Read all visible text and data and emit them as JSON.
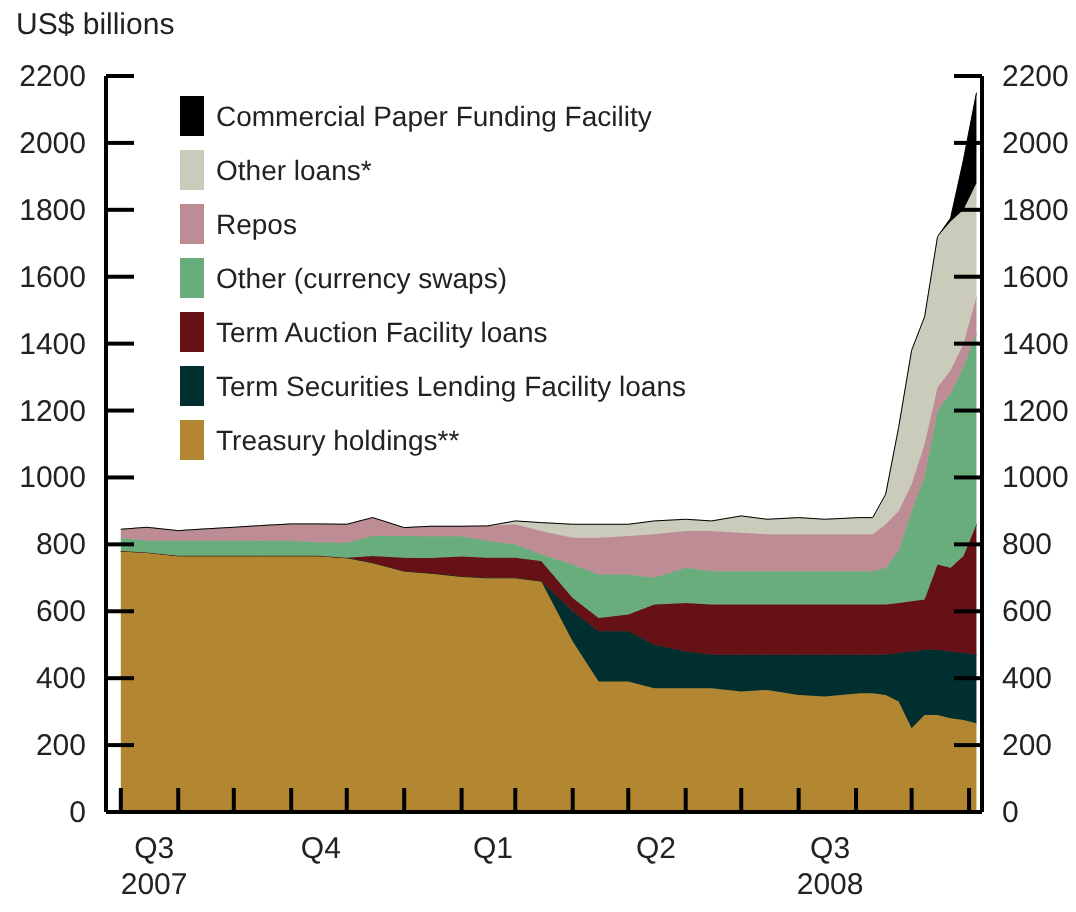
{
  "chart_data": {
    "type": "area",
    "stacked": true,
    "ylabel": "US$ billions",
    "x": [
      "2007-08-01",
      "2007-08-15",
      "2007-09-01",
      "2007-09-15",
      "2007-10-01",
      "2007-10-15",
      "2007-11-01",
      "2007-11-15",
      "2007-12-01",
      "2007-12-15",
      "2008-01-01",
      "2008-01-15",
      "2008-02-01",
      "2008-02-15",
      "2008-03-01",
      "2008-03-15",
      "2008-04-01",
      "2008-04-15",
      "2008-05-01",
      "2008-05-15",
      "2008-06-01",
      "2008-06-15",
      "2008-07-01",
      "2008-07-15",
      "2008-08-01",
      "2008-08-15",
      "2008-09-03",
      "2008-09-10",
      "2008-09-17",
      "2008-09-24",
      "2008-10-01",
      "2008-10-08",
      "2008-10-15",
      "2008-10-22",
      "2008-10-29",
      "2008-11-05"
    ],
    "series": [
      {
        "name": "Treasury holdings**",
        "color": "#b38631",
        "values": [
          780,
          776,
          766,
          766,
          766,
          766,
          766,
          766,
          760,
          745,
          720,
          714,
          704,
          700,
          700,
          690,
          510,
          390,
          390,
          370,
          370,
          370,
          360,
          365,
          350,
          345,
          355,
          355,
          350,
          330,
          250,
          290,
          290,
          280,
          275,
          265
        ]
      },
      {
        "name": "Term Securities Lending Facility loans",
        "color": "#012e2e",
        "values": [
          0,
          0,
          0,
          0,
          0,
          0,
          0,
          0,
          0,
          0,
          0,
          0,
          0,
          0,
          0,
          0,
          90,
          150,
          150,
          130,
          110,
          100,
          110,
          105,
          120,
          125,
          115,
          115,
          120,
          145,
          230,
          195,
          195,
          200,
          200,
          205
        ]
      },
      {
        "name": "Term Auction Facility loans",
        "color": "#651116",
        "values": [
          0,
          0,
          0,
          0,
          0,
          0,
          0,
          0,
          0,
          20,
          40,
          45,
          60,
          60,
          60,
          60,
          40,
          40,
          50,
          120,
          145,
          150,
          150,
          150,
          150,
          150,
          150,
          150,
          150,
          150,
          150,
          150,
          255,
          250,
          290,
          390
        ]
      },
      {
        "name": "Other (currency swaps)",
        "color": "#6aad7d",
        "values": [
          40,
          35,
          45,
          45,
          45,
          45,
          45,
          40,
          45,
          60,
          65,
          65,
          60,
          50,
          40,
          20,
          100,
          130,
          120,
          80,
          105,
          100,
          100,
          100,
          100,
          100,
          100,
          100,
          110,
          155,
          270,
          365,
          460,
          520,
          565,
          570
        ]
      },
      {
        "name": "Repos",
        "color": "#be8c95",
        "values": [
          25,
          40,
          30,
          35,
          40,
          45,
          50,
          55,
          55,
          55,
          25,
          30,
          30,
          45,
          60,
          70,
          80,
          110,
          115,
          130,
          110,
          120,
          115,
          110,
          110,
          110,
          110,
          110,
          130,
          120,
          80,
          100,
          70,
          70,
          70,
          110
        ]
      },
      {
        "name": "Other loans*",
        "color": "#cbcbbb",
        "values": [
          0,
          0,
          0,
          0,
          0,
          0,
          0,
          0,
          0,
          0,
          0,
          0,
          0,
          0,
          10,
          25,
          40,
          40,
          35,
          40,
          35,
          30,
          50,
          45,
          50,
          45,
          50,
          50,
          90,
          250,
          400,
          380,
          450,
          445,
          400,
          340
        ]
      },
      {
        "name": "Commercial Paper Funding Facility",
        "color": "#000000",
        "values": [
          0,
          0,
          0,
          0,
          0,
          0,
          0,
          0,
          0,
          0,
          0,
          0,
          0,
          0,
          0,
          0,
          0,
          0,
          0,
          0,
          0,
          0,
          0,
          0,
          0,
          0,
          0,
          0,
          0,
          0,
          0,
          0,
          0,
          10,
          150,
          270
        ]
      }
    ],
    "xlim": [
      "2007-07-24",
      "2008-11-08"
    ],
    "xticks": [
      {
        "value": "2007-08-01",
        "label": null
      },
      {
        "value": "2007-08-19",
        "label": "Q3\n2007"
      },
      {
        "value": "2007-09-01",
        "label": null
      },
      {
        "value": "2007-10-01",
        "label": null
      },
      {
        "value": "2007-11-01",
        "label": null
      },
      {
        "value": "2007-11-17",
        "label": "Q4"
      },
      {
        "value": "2007-12-01",
        "label": null
      },
      {
        "value": "2008-01-01",
        "label": null
      },
      {
        "value": "2008-02-01",
        "label": null
      },
      {
        "value": "2008-02-18",
        "label": "Q1"
      },
      {
        "value": "2008-03-01",
        "label": null
      },
      {
        "value": "2008-04-01",
        "label": null
      },
      {
        "value": "2008-05-01",
        "label": null
      },
      {
        "value": "2008-05-16",
        "label": "Q2"
      },
      {
        "value": "2008-06-01",
        "label": null
      },
      {
        "value": "2008-07-01",
        "label": null
      },
      {
        "value": "2008-08-01",
        "label": null
      },
      {
        "value": "2008-08-18",
        "label": "Q3\n2008"
      },
      {
        "value": "2008-09-01",
        "label": null
      },
      {
        "value": "2008-10-01",
        "label": null
      },
      {
        "value": "2008-11-01",
        "label": null
      }
    ],
    "ylim": [
      0,
      2200
    ],
    "yticks": [
      0,
      200,
      400,
      600,
      800,
      1000,
      1200,
      1400,
      1600,
      1800,
      2000,
      2200
    ],
    "y2lim": [
      0,
      2200
    ],
    "y2ticks": [
      0,
      200,
      400,
      600,
      800,
      1000,
      1200,
      1400,
      1600,
      1800,
      2000,
      2200
    ],
    "legend": "top left"
  }
}
